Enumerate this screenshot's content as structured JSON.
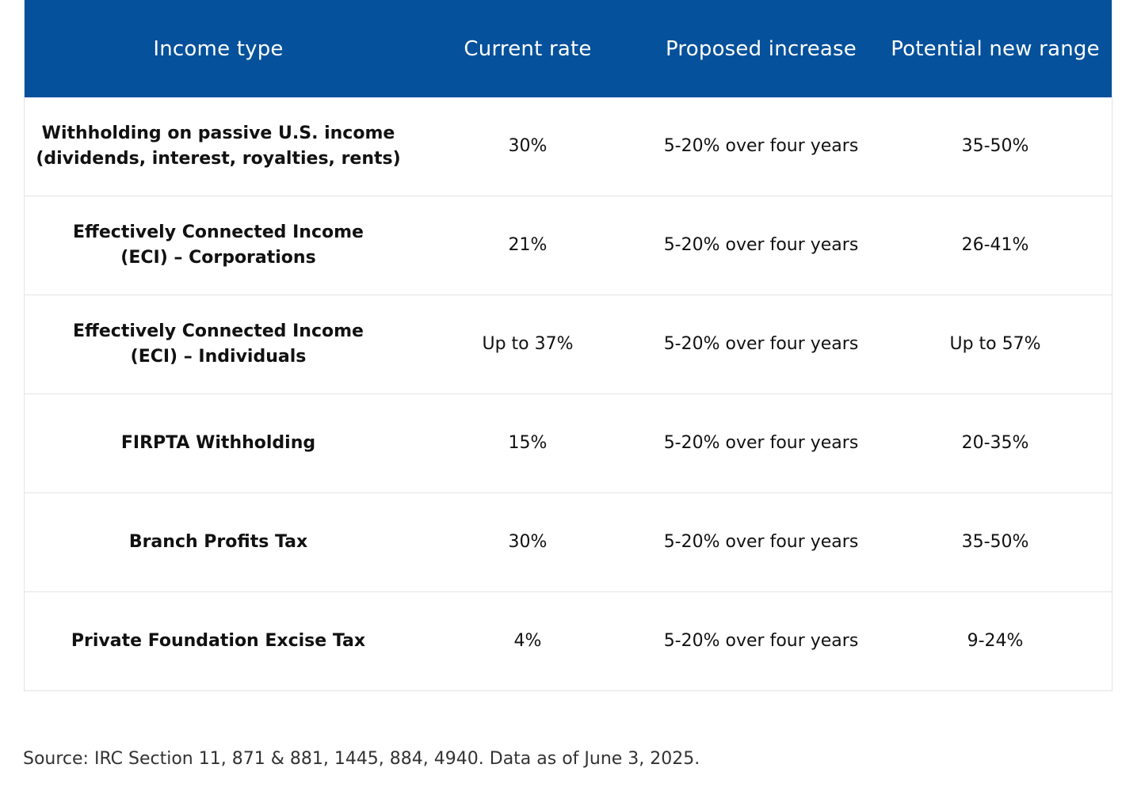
{
  "table": {
    "headers": [
      "Income type",
      "Current rate",
      "Proposed increase",
      "Potential new range"
    ],
    "rows": [
      {
        "income_type_line1": "Withholding on passive U.S. income",
        "income_type_line2": "(dividends, interest,  royalties,  rents)",
        "current_rate": "30%",
        "proposed_increase": "5-20% over four years",
        "new_range": "35-50%"
      },
      {
        "income_type_line1": "Effectively Connected Income",
        "income_type_line2": "(ECI) – Corporations",
        "current_rate": "21%",
        "proposed_increase": "5-20% over four years",
        "new_range": "26-41%"
      },
      {
        "income_type_line1": "Effectively Connected Income",
        "income_type_line2": "(ECI) – Individuals",
        "current_rate": "Up to 37%",
        "proposed_increase": "5-20% over four years",
        "new_range": "Up to 57%"
      },
      {
        "income_type_line1": "FIRPTA Withholding",
        "income_type_line2": "",
        "current_rate": "15%",
        "proposed_increase": "5-20% over four years",
        "new_range": "20-35%"
      },
      {
        "income_type_line1": "Branch Profits Tax",
        "income_type_line2": "",
        "current_rate": "30%",
        "proposed_increase": "5-20% over four years",
        "new_range": "35-50%"
      },
      {
        "income_type_line1": "Private Foundation Excise Tax",
        "income_type_line2": "",
        "current_rate": "4%",
        "proposed_increase": "5-20% over four years",
        "new_range": "9-24%"
      }
    ]
  },
  "source_note": "Source: IRC Section 11, 871 & 881, 1445, 884, 4940. Data as of June 3, 2025.",
  "colors": {
    "header_bg": "#05519b",
    "header_text": "#ffffff",
    "border": "#e3e3e3"
  }
}
